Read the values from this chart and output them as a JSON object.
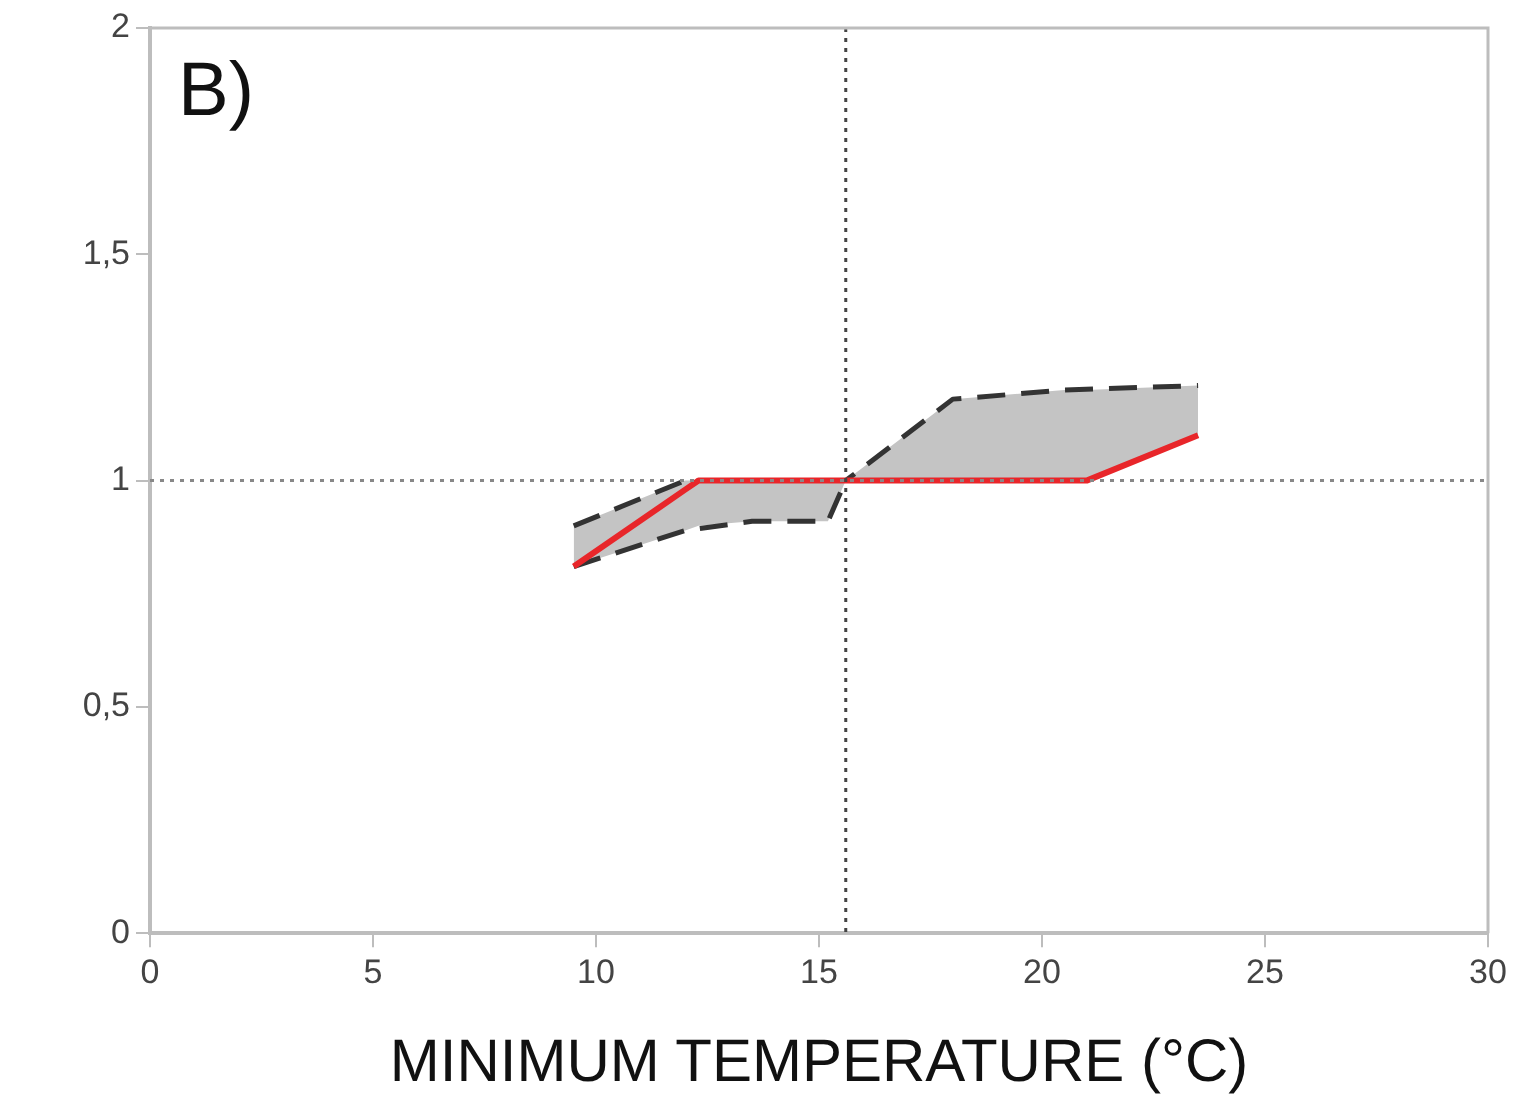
{
  "chart_data": {
    "type": "line",
    "xlabel": "MINIMUM TEMPERATURE (°C)",
    "annotations": [
      "B)"
    ],
    "xlim": [
      0,
      30
    ],
    "xticks": [
      0,
      5,
      10,
      15,
      20,
      25,
      30
    ],
    "ylim": [
      0,
      2
    ],
    "yticks": [
      0,
      {
        "value": 0.5,
        "label": "0,5"
      },
      1,
      {
        "value": 1.5,
        "label": "1,5"
      },
      2
    ],
    "grid": false,
    "legend": false,
    "marker": "none",
    "series": [
      {
        "color": "#e8262a",
        "line_style": "solid",
        "x": [
          9.5,
          12,
          12.3,
          13.5,
          15.2,
          15.6,
          18,
          20.5,
          21,
          23.5
        ],
        "values": [
          0.81,
          0.98,
          1,
          1,
          1,
          1,
          1,
          1,
          1,
          1.1
        ],
        "lower": [
          0.81,
          0.89,
          0.9,
          0.91,
          0.91,
          1,
          1,
          1,
          1,
          1.1
        ],
        "upper": [
          0.9,
          1,
          1,
          1,
          1,
          1,
          1.18,
          1.2,
          1.2,
          1.21
        ]
      },
      {
        "color": "#333333",
        "line_style": "dashed",
        "x": [
          9.5,
          12,
          15.6,
          18,
          20.5,
          23.5
        ],
        "values": [
          0.9,
          1,
          1,
          1.18,
          1.2,
          1.21
        ]
      },
      {
        "color": "#333333",
        "line_style": "dashed",
        "x": [
          9.5,
          12,
          13.5,
          15.2,
          15.6
        ],
        "values": [
          0.81,
          0.89,
          0.91,
          0.91,
          1
        ]
      }
    ],
    "ref_lines": [
      {
        "axis": "y",
        "value": 1,
        "color": "#888888",
        "line_style": "dotted"
      },
      {
        "axis": "x",
        "value": 15.6,
        "color": "#444444",
        "line_style": "dotted"
      }
    ]
  }
}
